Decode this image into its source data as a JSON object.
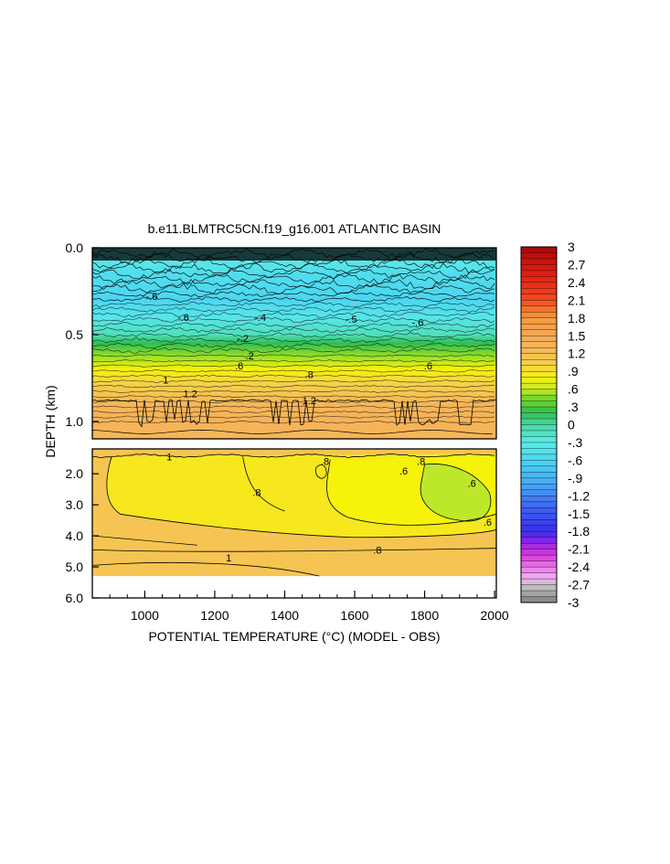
{
  "chart_data": {
    "type": "heatmap",
    "title": "b.e11.BLMTRC5CN.f19_g16.001 ATLANTIC BASIN",
    "xlabel": "POTENTIAL TEMPERATURE (°C) (MODEL - OBS)",
    "ylabel": "DEPTH (km)",
    "xlim": [
      850,
      2005
    ],
    "x_ticks": [
      {
        "value": 1000,
        "label": "1000"
      },
      {
        "value": 1200,
        "label": "1200"
      },
      {
        "value": 1400,
        "label": "1400"
      },
      {
        "value": 1600,
        "label": "1600"
      },
      {
        "value": 1800,
        "label": "1800"
      },
      {
        "value": 2000,
        "label": "2000"
      }
    ],
    "upper_panel": {
      "ylim": [
        0.0,
        1.1
      ],
      "y_ticks": [
        {
          "value": 0.0,
          "label": "0.0"
        },
        {
          "value": 0.5,
          "label": "0.5"
        },
        {
          "value": 1.0,
          "label": "1.0"
        }
      ],
      "profile": [
        {
          "depth": 0.0,
          "value": -0.3
        },
        {
          "depth": 0.05,
          "value": -0.3
        },
        {
          "depth": 0.15,
          "value": -0.5
        },
        {
          "depth": 0.3,
          "value": -0.6
        },
        {
          "depth": 0.4,
          "value": -0.4
        },
        {
          "depth": 0.5,
          "value": -0.1
        },
        {
          "depth": 0.55,
          "value": 0.2
        },
        {
          "depth": 0.62,
          "value": 0.5
        },
        {
          "depth": 0.7,
          "value": 0.8
        },
        {
          "depth": 0.78,
          "value": 1.0
        },
        {
          "depth": 0.9,
          "value": 1.3
        },
        {
          "depth": 1.0,
          "value": 1.35
        },
        {
          "depth": 1.1,
          "value": 1.3
        }
      ],
      "contour_labels": [
        {
          "x": 1020,
          "depth": 0.28,
          "label": "-.6"
        },
        {
          "x": 1110,
          "depth": 0.4,
          "label": "-.6"
        },
        {
          "x": 1330,
          "depth": 0.4,
          "label": "-.4"
        },
        {
          "x": 1280,
          "depth": 0.52,
          "label": "-.2"
        },
        {
          "x": 1300,
          "depth": 0.62,
          "label": ".2"
        },
        {
          "x": 1270,
          "depth": 0.68,
          "label": ".6"
        },
        {
          "x": 1470,
          "depth": 0.73,
          "label": ".8"
        },
        {
          "x": 1060,
          "depth": 0.76,
          "label": "1"
        },
        {
          "x": 1130,
          "depth": 0.84,
          "label": "1.2"
        },
        {
          "x": 1470,
          "depth": 0.88,
          "label": "1.2"
        },
        {
          "x": 1810,
          "depth": 0.68,
          "label": ".6"
        },
        {
          "x": 1780,
          "depth": 0.43,
          "label": "-.6"
        },
        {
          "x": 1590,
          "depth": 0.41,
          "label": "-.5"
        }
      ]
    },
    "lower_panel": {
      "ylim": [
        1.2,
        6.0
      ],
      "y_ticks": [
        {
          "value": 2.0,
          "label": "2.0"
        },
        {
          "value": 3.0,
          "label": "3.0"
        },
        {
          "value": 4.0,
          "label": "4.0"
        },
        {
          "value": 5.0,
          "label": "5.0"
        },
        {
          "value": 6.0,
          "label": "6.0"
        }
      ],
      "data_bottom_depth": 5.3,
      "contour_labels": [
        {
          "x": 1320,
          "depth": 2.6,
          "label": ".8"
        },
        {
          "x": 1515,
          "depth": 1.6,
          "label": ".8"
        },
        {
          "x": 1790,
          "depth": 1.6,
          "label": ".8"
        },
        {
          "x": 1740,
          "depth": 1.9,
          "label": ".6"
        },
        {
          "x": 1935,
          "depth": 2.3,
          "label": ".6"
        },
        {
          "x": 1980,
          "depth": 3.55,
          "label": ".6"
        },
        {
          "x": 1665,
          "depth": 4.45,
          "label": ".8"
        },
        {
          "x": 1240,
          "depth": 4.7,
          "label": "1"
        },
        {
          "x": 1070,
          "depth": 1.45,
          "label": "1"
        }
      ]
    },
    "colorbar": {
      "min": -3.0,
      "max": 3.0,
      "step": 0.1,
      "labels": [
        "3",
        "2.7",
        "2.4",
        "2.1",
        "1.8",
        "1.5",
        "1.2",
        ".9",
        ".6",
        ".3",
        "0",
        "-.3",
        "-.6",
        "-.9",
        "-1.2",
        "-1.5",
        "-1.8",
        "-2.1",
        "-2.4",
        "-2.7",
        "-3"
      ],
      "label_values": [
        3,
        2.7,
        2.4,
        2.1,
        1.8,
        1.5,
        1.2,
        0.9,
        0.6,
        0.3,
        0,
        -0.3,
        -0.6,
        -0.9,
        -1.2,
        -1.5,
        -1.8,
        -2.1,
        -2.4,
        -2.7,
        -3
      ],
      "stops": [
        {
          "v": -3.0,
          "c": "#7f7f7f"
        },
        {
          "v": -2.7,
          "c": "#c8c8c8"
        },
        {
          "v": -2.55,
          "c": "#f2a4f2"
        },
        {
          "v": -2.2,
          "c": "#d63cd6"
        },
        {
          "v": -2.0,
          "c": "#9a25e6"
        },
        {
          "v": -1.8,
          "c": "#3a2ee8"
        },
        {
          "v": -1.4,
          "c": "#3f64ee"
        },
        {
          "v": -1.0,
          "c": "#47a8f2"
        },
        {
          "v": -0.6,
          "c": "#4cd6f0"
        },
        {
          "v": -0.3,
          "c": "#5cece6"
        },
        {
          "v": 0.0,
          "c": "#4ad8a4"
        },
        {
          "v": 0.2,
          "c": "#2fbe52"
        },
        {
          "v": 0.45,
          "c": "#78d82a"
        },
        {
          "v": 0.6,
          "c": "#c8ea2a"
        },
        {
          "v": 0.8,
          "c": "#f6f20a"
        },
        {
          "v": 1.0,
          "c": "#f5d248"
        },
        {
          "v": 1.25,
          "c": "#f6ba58"
        },
        {
          "v": 1.5,
          "c": "#f5a85a"
        },
        {
          "v": 1.8,
          "c": "#f69a3c"
        },
        {
          "v": 2.1,
          "c": "#f24a22"
        },
        {
          "v": 2.4,
          "c": "#e82a18"
        },
        {
          "v": 2.7,
          "c": "#d0160e"
        },
        {
          "v": 3.0,
          "c": "#a8080a"
        }
      ]
    }
  }
}
